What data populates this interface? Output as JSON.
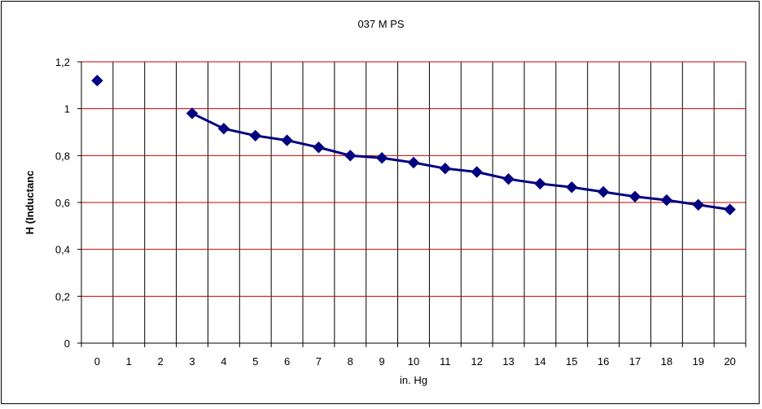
{
  "chart_data": {
    "type": "line",
    "title": "037 M PS",
    "xlabel": "in. Hg",
    "ylabel": "H (Inductanc",
    "categories": [
      "0",
      "1",
      "2",
      "3",
      "4",
      "5",
      "6",
      "7",
      "8",
      "9",
      "10",
      "11",
      "12",
      "13",
      "14",
      "15",
      "16",
      "17",
      "18",
      "19",
      "20"
    ],
    "y_ticks": [
      "0",
      "0,2",
      "0,4",
      "0,6",
      "0,8",
      "1",
      "1,2"
    ],
    "ylim": [
      0,
      1.2
    ],
    "grid": "horizontal major",
    "legend": "none",
    "series": [
      {
        "values": [
          1.12,
          null,
          null,
          0.98,
          0.915,
          0.885,
          0.865,
          0.835,
          0.8,
          0.79,
          0.77,
          0.745,
          0.73,
          0.7,
          0.68,
          0.665,
          0.645,
          0.625,
          0.61,
          0.59,
          0.57
        ]
      }
    ],
    "colors": {
      "series": "#000080",
      "gridline": "#cc0000",
      "frame": "#000000"
    }
  }
}
